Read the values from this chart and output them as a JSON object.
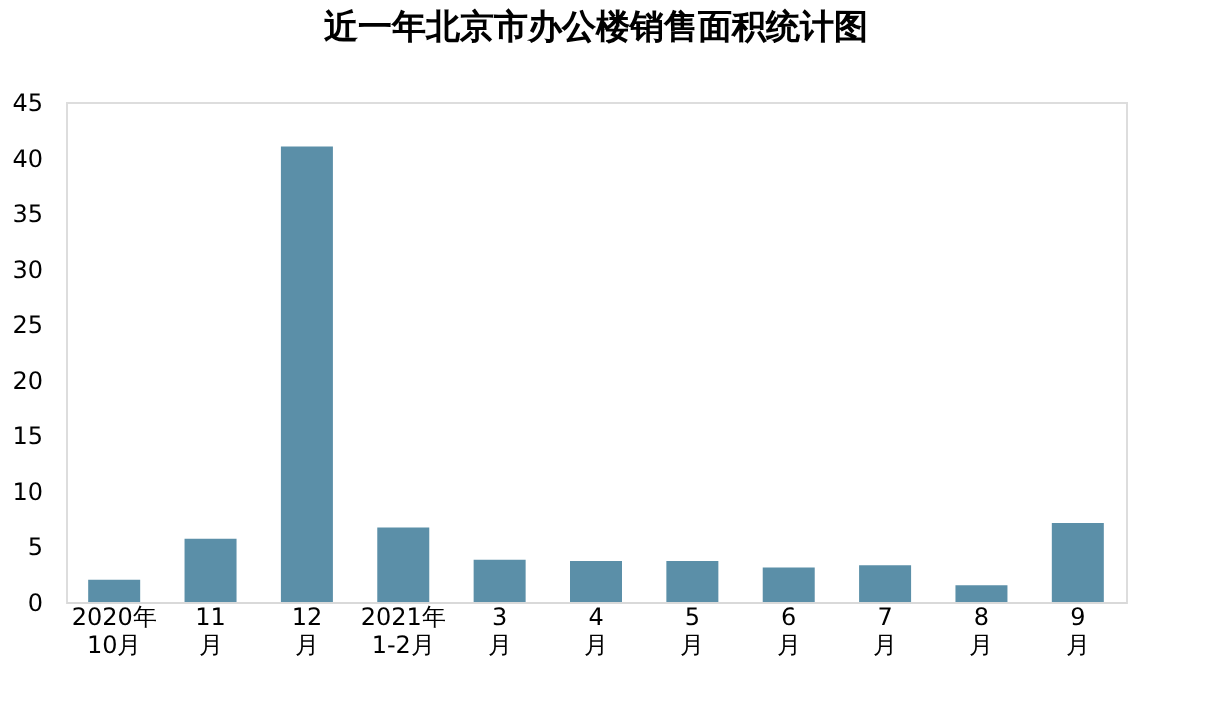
{
  "chart_data": {
    "type": "bar",
    "title": "近一年北京市办公楼销售面积统计图",
    "categories": [
      "2020年\n10月",
      "11\n月",
      "12\n月",
      "2021年\n1-2月",
      "3\n月",
      "4\n月",
      "5\n月",
      "6\n月",
      "7\n月",
      "8\n月",
      "9\n月"
    ],
    "values": [
      2.0,
      5.7,
      41.0,
      6.7,
      3.8,
      3.7,
      3.7,
      3.1,
      3.3,
      1.5,
      7.1
    ],
    "color": "#5b8fa8",
    "ylim": [
      0,
      45
    ],
    "yticks": [
      0,
      5,
      10,
      15,
      20,
      25,
      30,
      35,
      40,
      45
    ],
    "grid": false
  }
}
